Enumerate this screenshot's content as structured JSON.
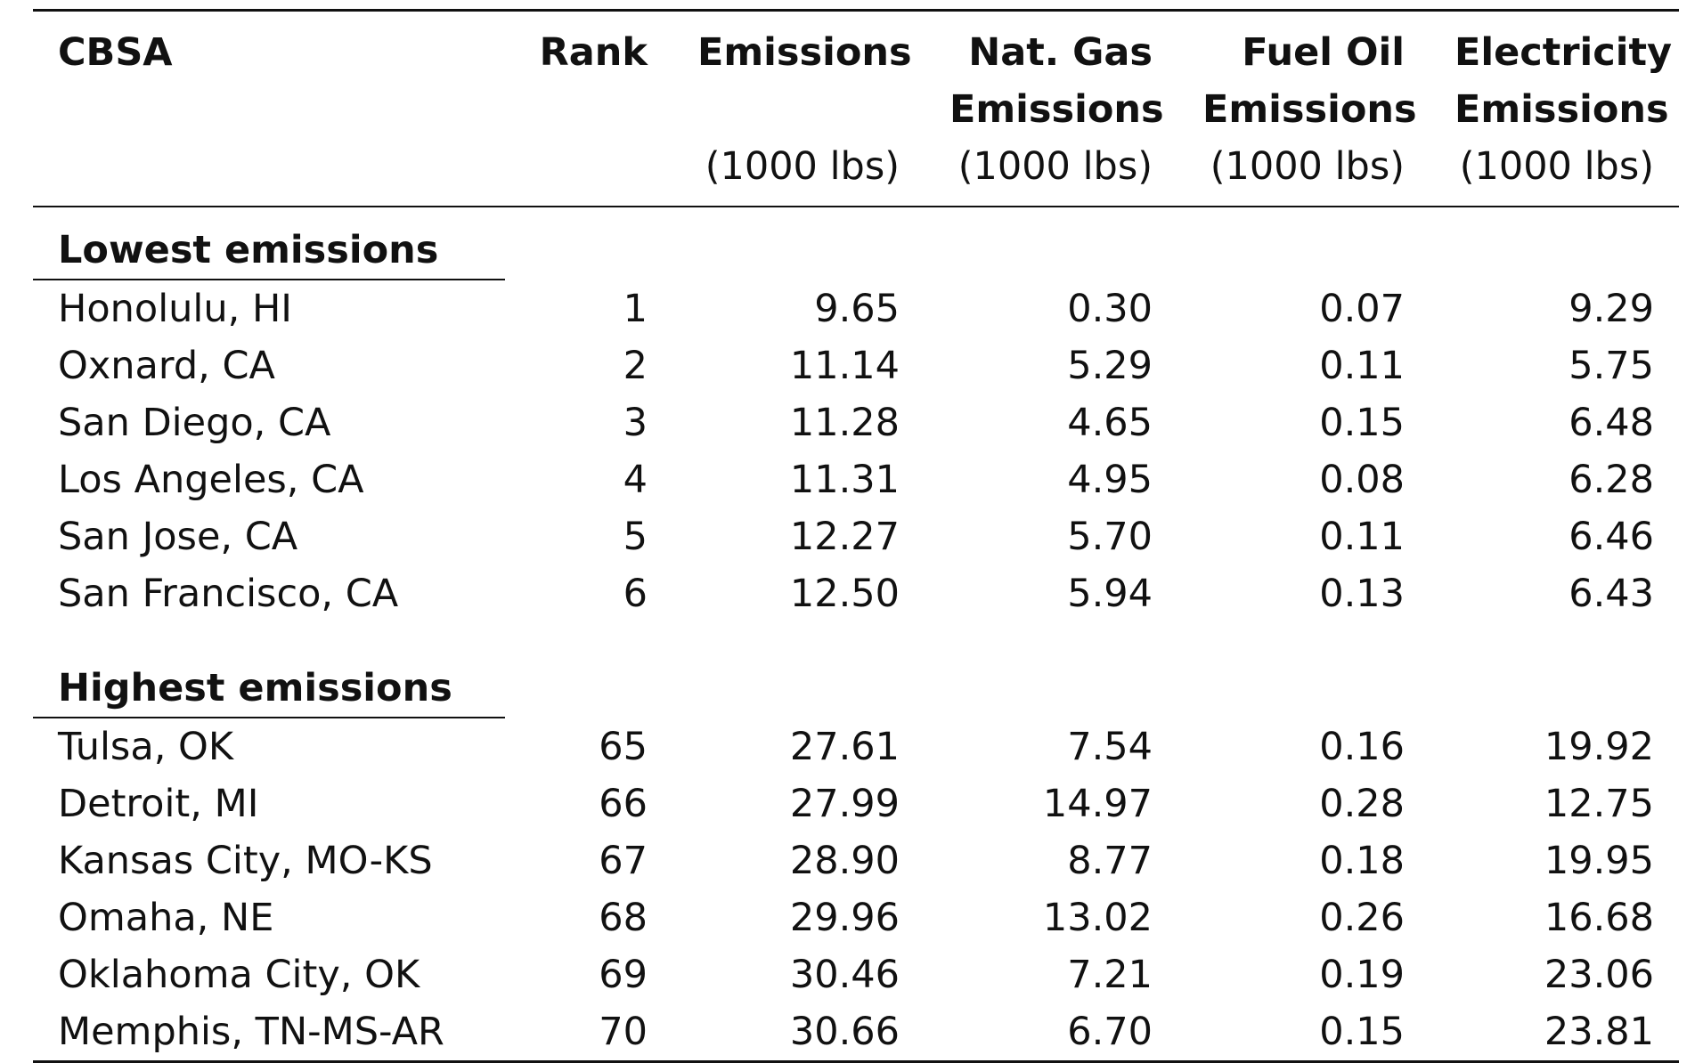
{
  "table": {
    "headers": {
      "cbsa": "CBSA",
      "rank": "Rank",
      "emissions": "Emissions",
      "natgas_line1": "Nat. Gas",
      "natgas_line2": "Emissions",
      "fueloil_line1": "Fuel Oil",
      "fueloil_line2": "Emissions",
      "electricity_line1": "Electricity",
      "electricity_line2": "Emissions",
      "units": "(1000 lbs)"
    },
    "groups": [
      {
        "label": "Lowest emissions",
        "rows": [
          {
            "cbsa": "Honolulu, HI",
            "rank": "1",
            "emissions": "9.65",
            "natgas": "0.30",
            "fueloil": "0.07",
            "electricity": "9.29"
          },
          {
            "cbsa": "Oxnard, CA",
            "rank": "2",
            "emissions": "11.14",
            "natgas": "5.29",
            "fueloil": "0.11",
            "electricity": "5.75"
          },
          {
            "cbsa": "San Diego, CA",
            "rank": "3",
            "emissions": "11.28",
            "natgas": "4.65",
            "fueloil": "0.15",
            "electricity": "6.48"
          },
          {
            "cbsa": "Los Angeles, CA",
            "rank": "4",
            "emissions": "11.31",
            "natgas": "4.95",
            "fueloil": "0.08",
            "electricity": "6.28"
          },
          {
            "cbsa": "San Jose, CA",
            "rank": "5",
            "emissions": "12.27",
            "natgas": "5.70",
            "fueloil": "0.11",
            "electricity": "6.46"
          },
          {
            "cbsa": "San Francisco, CA",
            "rank": "6",
            "emissions": "12.50",
            "natgas": "5.94",
            "fueloil": "0.13",
            "electricity": "6.43"
          }
        ]
      },
      {
        "label": "Highest emissions",
        "rows": [
          {
            "cbsa": "Tulsa, OK",
            "rank": "65",
            "emissions": "27.61",
            "natgas": "7.54",
            "fueloil": "0.16",
            "electricity": "19.92"
          },
          {
            "cbsa": "Detroit, MI",
            "rank": "66",
            "emissions": "27.99",
            "natgas": "14.97",
            "fueloil": "0.28",
            "electricity": "12.75"
          },
          {
            "cbsa": "Kansas City, MO-KS",
            "rank": "67",
            "emissions": "28.90",
            "natgas": "8.77",
            "fueloil": "0.18",
            "electricity": "19.95"
          },
          {
            "cbsa": "Omaha, NE",
            "rank": "68",
            "emissions": "29.96",
            "natgas": "13.02",
            "fueloil": "0.26",
            "electricity": "16.68"
          },
          {
            "cbsa": "Oklahoma City, OK",
            "rank": "69",
            "emissions": "30.46",
            "natgas": "7.21",
            "fueloil": "0.19",
            "electricity": "23.06"
          },
          {
            "cbsa": "Memphis, TN-MS-AR",
            "rank": "70",
            "emissions": "30.66",
            "natgas": "6.70",
            "fueloil": "0.15",
            "electricity": "23.81"
          }
        ]
      }
    ]
  }
}
